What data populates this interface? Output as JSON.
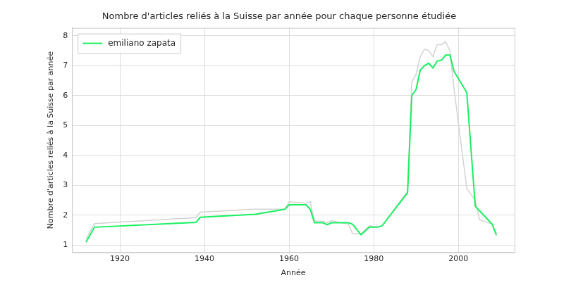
{
  "chart_data": {
    "type": "line",
    "title": "Nombre d'articles reliés à la Suisse par année pour chaque personne étudiée",
    "x_label": "Année",
    "y_label": "Nombre d'articles reliés à la Suisse par année",
    "x": [
      1912,
      1914,
      1938,
      1939,
      1952,
      1957,
      1959,
      1960,
      1964,
      1965,
      1966,
      1968,
      1969,
      1970,
      1974,
      1975,
      1977,
      1979,
      1981,
      1982,
      1988,
      1989,
      1990,
      1991,
      1992,
      1993,
      1994,
      1995,
      1996,
      1997,
      1998,
      1999,
      2002,
      2004,
      2005,
      2008,
      2009
    ],
    "series": [
      {
        "color": "#d3d3d3",
        "values": [
          1.2,
          1.72,
          1.92,
          2.1,
          2.2,
          2.2,
          2.2,
          2.45,
          2.4,
          2.45,
          1.8,
          1.8,
          1.75,
          1.82,
          1.7,
          1.38,
          1.38,
          1.65,
          1.6,
          1.65,
          2.8,
          6.45,
          6.7,
          7.3,
          7.55,
          7.5,
          7.3,
          7.7,
          7.7,
          7.8,
          7.5,
          6.2,
          2.9,
          2.5,
          1.85,
          1.7,
          1.3
        ]
      },
      {
        "name": "emiliano zapata",
        "color": "#18f060",
        "values": [
          1.1,
          1.6,
          1.76,
          1.93,
          2.03,
          2.15,
          2.2,
          2.35,
          2.35,
          2.2,
          1.75,
          1.75,
          1.68,
          1.75,
          1.75,
          1.7,
          1.35,
          1.6,
          1.6,
          1.65,
          2.75,
          6.0,
          6.2,
          6.85,
          7.0,
          7.08,
          6.92,
          7.15,
          7.18,
          7.35,
          7.35,
          6.8,
          6.1,
          2.3,
          2.15,
          1.7,
          1.35
        ]
      }
    ],
    "xlim": [
      1908.7,
      2013.3
    ],
    "xticks": [
      1920,
      1940,
      1960,
      1980,
      2000
    ],
    "ylim": [
      0.76,
      8.26
    ],
    "yticks": [
      1,
      2,
      3,
      4,
      5,
      6,
      7,
      8
    ],
    "grid": true,
    "legend": "upper left"
  }
}
